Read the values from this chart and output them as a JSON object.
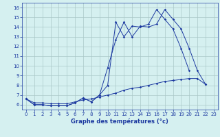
{
  "x_hours": [
    0,
    1,
    2,
    3,
    4,
    5,
    6,
    7,
    8,
    9,
    10,
    11,
    12,
    13,
    14,
    15,
    16,
    17,
    18,
    19,
    20,
    21,
    22,
    23
  ],
  "line1": [
    6.6,
    6.0,
    6.0,
    5.9,
    5.9,
    5.9,
    6.2,
    6.7,
    6.3,
    7.0,
    8.0,
    14.5,
    13.0,
    14.1,
    14.0,
    14.3,
    15.8,
    14.8,
    13.8,
    11.8,
    9.5,
    null,
    null,
    null
  ],
  "line2": [
    6.6,
    6.0,
    6.0,
    5.9,
    5.9,
    5.9,
    6.2,
    6.7,
    6.3,
    7.0,
    9.8,
    12.7,
    14.5,
    13.0,
    14.1,
    14.0,
    14.3,
    15.8,
    14.8,
    13.8,
    11.8,
    9.5,
    8.1,
    null
  ],
  "line3": [
    6.6,
    6.2,
    6.2,
    6.1,
    6.1,
    6.1,
    6.3,
    6.5,
    6.6,
    6.8,
    7.0,
    7.2,
    7.5,
    7.7,
    7.8,
    8.0,
    8.2,
    8.4,
    8.5,
    8.6,
    8.7,
    8.7,
    8.1,
    null
  ],
  "line_color": "#1c39a0",
  "bg_color": "#d5f0f0",
  "grid_color": "#aac8c8",
  "xlabel": "Graphe des températures (°c)",
  "ylim": [
    5.5,
    16.5
  ],
  "xlim": [
    -0.5,
    23.5
  ],
  "yticks": [
    6,
    7,
    8,
    9,
    10,
    11,
    12,
    13,
    14,
    15,
    16
  ],
  "xticks": [
    0,
    1,
    2,
    3,
    4,
    5,
    6,
    7,
    8,
    9,
    10,
    11,
    12,
    13,
    14,
    15,
    16,
    17,
    18,
    19,
    20,
    21,
    22,
    23
  ]
}
